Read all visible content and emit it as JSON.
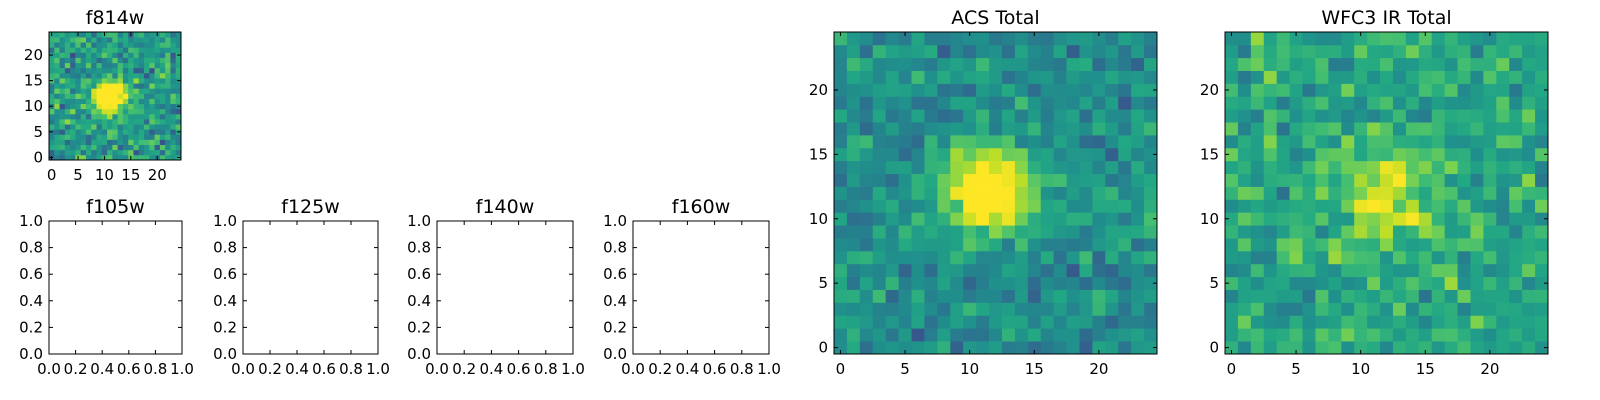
{
  "colors": {
    "colormap": "viridis",
    "low": "#440154",
    "mid": "#21908d",
    "high": "#fde725"
  },
  "chart_data": [
    {
      "type": "heatmap",
      "id": "f814w",
      "title": "f814w",
      "shape": [
        25,
        25
      ],
      "xlim": [
        -0.5,
        24.5
      ],
      "ylim": [
        -0.5,
        24.5
      ],
      "xticks": [
        0,
        5,
        10,
        15,
        20
      ],
      "yticks": [
        0,
        5,
        10,
        15,
        20
      ],
      "source": {
        "center": [
          11,
          12
        ],
        "sigma": 2.1,
        "amplitude": 0.95,
        "baseline": 0.55,
        "noise": 0.22
      },
      "colormap": "viridis"
    },
    {
      "type": "heatmap",
      "id": "f105w",
      "title": "f105w",
      "empty": true,
      "xlim": [
        0.0,
        1.0
      ],
      "ylim": [
        0.0,
        1.0
      ],
      "xticks": [
        "0.0",
        "0.2",
        "0.4",
        "0.6",
        "0.8",
        "1.0"
      ],
      "yticks": [
        "0.0",
        "0.2",
        "0.4",
        "0.6",
        "0.8",
        "1.0"
      ]
    },
    {
      "type": "heatmap",
      "id": "f125w",
      "title": "f125w",
      "empty": true,
      "xlim": [
        0.0,
        1.0
      ],
      "ylim": [
        0.0,
        1.0
      ],
      "xticks": [
        "0.0",
        "0.2",
        "0.4",
        "0.6",
        "0.8",
        "1.0"
      ],
      "yticks": [
        "0.0",
        "0.2",
        "0.4",
        "0.6",
        "0.8",
        "1.0"
      ]
    },
    {
      "type": "heatmap",
      "id": "f140w",
      "title": "f140w",
      "empty": true,
      "xlim": [
        0.0,
        1.0
      ],
      "ylim": [
        0.0,
        1.0
      ],
      "xticks": [
        "0.0",
        "0.2",
        "0.4",
        "0.6",
        "0.8",
        "1.0"
      ],
      "yticks": [
        "0.0",
        "0.2",
        "0.4",
        "0.6",
        "0.8",
        "1.0"
      ]
    },
    {
      "type": "heatmap",
      "id": "f160w",
      "title": "f160w",
      "empty": true,
      "xlim": [
        0.0,
        1.0
      ],
      "ylim": [
        0.0,
        1.0
      ],
      "xticks": [
        "0.0",
        "0.2",
        "0.4",
        "0.6",
        "0.8",
        "1.0"
      ],
      "yticks": [
        "0.0",
        "0.2",
        "0.4",
        "0.6",
        "0.8",
        "1.0"
      ]
    },
    {
      "type": "heatmap",
      "id": "acs-total",
      "title": "ACS Total",
      "shape": [
        25,
        25
      ],
      "xlim": [
        -0.5,
        24.5
      ],
      "ylim": [
        -0.5,
        24.5
      ],
      "xticks": [
        0,
        5,
        10,
        15,
        20
      ],
      "yticks": [
        0,
        5,
        10,
        15,
        20
      ],
      "source": {
        "center": [
          11.5,
          12
        ],
        "sigma": 2.3,
        "amplitude": 0.75,
        "baseline": 0.5,
        "noise": 0.16
      },
      "colormap": "viridis"
    },
    {
      "type": "heatmap",
      "id": "wfc3-ir-total",
      "title": "WFC3 IR Total",
      "shape": [
        25,
        25
      ],
      "xlim": [
        -0.5,
        24.5
      ],
      "ylim": [
        -0.5,
        24.5
      ],
      "xticks": [
        0,
        5,
        10,
        15,
        20
      ],
      "yticks": [
        0,
        5,
        10,
        15,
        20
      ],
      "source": {
        "center": [
          12,
          12
        ],
        "sigma": 2.8,
        "amplitude": 0.3,
        "baseline": 0.6,
        "noise": 0.17
      },
      "colormap": "viridis"
    }
  ]
}
